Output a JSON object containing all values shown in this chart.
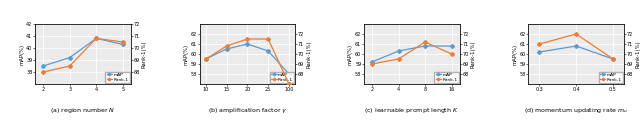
{
  "subplots": [
    {
      "title": "(a) region number $N$",
      "xlabel_vals": [
        2,
        3,
        4,
        5
      ],
      "mAP": [
        38.5,
        39.2,
        40.8,
        40.3
      ],
      "rank1": [
        68.0,
        68.5,
        70.8,
        70.5
      ],
      "mAP_ylim": [
        37,
        42
      ],
      "rank1_ylim": [
        67,
        72
      ],
      "mAP_yticks": [
        38,
        39,
        40,
        41,
        42
      ],
      "rank1_yticks": [
        68,
        69,
        70,
        71,
        72
      ],
      "x_evenly": true
    },
    {
      "title": "(b) amplification factor $\\gamma$",
      "xlabel_vals": [
        10,
        15,
        20,
        25,
        100
      ],
      "xlabel_labels": [
        "10",
        "15",
        "20",
        "25",
        "100"
      ],
      "mAP": [
        59.5,
        60.5,
        61.0,
        60.3,
        58.0
      ],
      "rank1": [
        69.5,
        70.8,
        71.5,
        71.5,
        67.0
      ],
      "mAP_ylim": [
        57,
        63
      ],
      "rank1_ylim": [
        67,
        73
      ],
      "mAP_yticks": [
        58,
        59,
        60,
        61,
        62
      ],
      "rank1_yticks": [
        68,
        69,
        70,
        71,
        72
      ],
      "x_evenly": true
    },
    {
      "title": "(c) learnable prompt length $K$",
      "xlabel_vals": [
        2,
        4,
        8,
        16
      ],
      "mAP": [
        59.2,
        60.3,
        60.8,
        60.8
      ],
      "rank1": [
        69.0,
        69.5,
        71.2,
        70.0
      ],
      "mAP_ylim": [
        57,
        63
      ],
      "rank1_ylim": [
        67,
        73
      ],
      "mAP_yticks": [
        58,
        59,
        60,
        61,
        62
      ],
      "rank1_yticks": [
        68,
        69,
        70,
        71,
        72
      ],
      "x_evenly": true
    },
    {
      "title": "(d) momentum updating rate $m_u$",
      "xlabel_vals": [
        0.3,
        0.4,
        0.5
      ],
      "xlabel_labels": [
        "0.3",
        "0.4",
        "0.5"
      ],
      "mAP": [
        60.2,
        60.8,
        59.5
      ],
      "rank1": [
        71.0,
        72.0,
        69.5
      ],
      "mAP_ylim": [
        57,
        63
      ],
      "rank1_ylim": [
        67,
        73
      ],
      "mAP_yticks": [
        58,
        59,
        60,
        61,
        62
      ],
      "rank1_yticks": [
        68,
        69,
        70,
        71,
        72
      ],
      "x_evenly": true
    }
  ],
  "color_mAP": "#5b9bd5",
  "color_rank1": "#ed7d31",
  "legend_labels": [
    "mAP",
    "Rank-1"
  ],
  "bg_color": "#ebebeb"
}
